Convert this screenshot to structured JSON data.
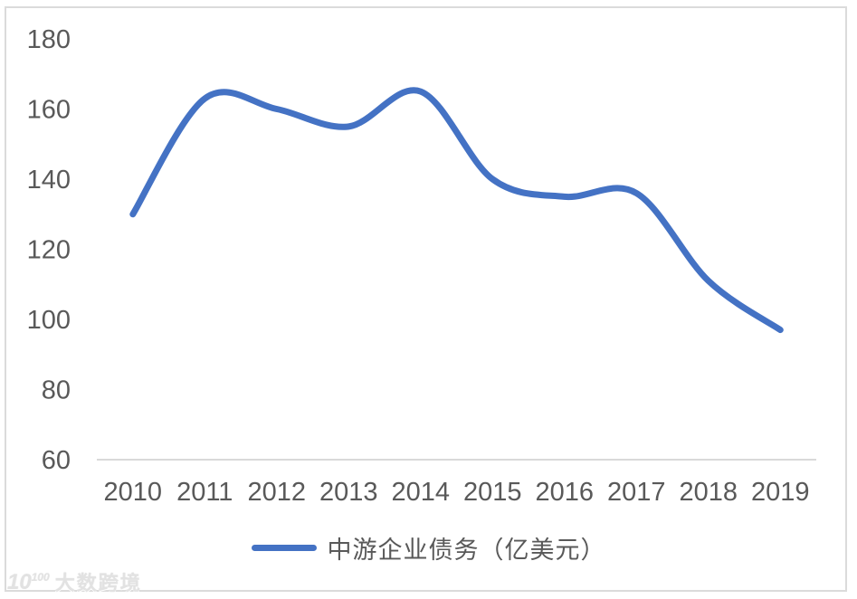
{
  "chart_data": {
    "type": "line",
    "title": "",
    "xlabel": "",
    "ylabel": "",
    "categories": [
      "2010",
      "2011",
      "2012",
      "2013",
      "2014",
      "2015",
      "2016",
      "2017",
      "2018",
      "2019"
    ],
    "series": [
      {
        "name": "中游企业债务（亿美元）",
        "values": [
          130,
          163,
          160,
          155,
          165,
          140,
          135,
          136,
          111,
          97
        ],
        "color": "#4472C4"
      }
    ],
    "ylim": [
      60,
      180
    ],
    "ytick_step": 20,
    "ytick_labels": [
      "180",
      "160",
      "140",
      "120",
      "100",
      "80",
      "60"
    ],
    "grid": false,
    "smooth": true,
    "legend_position": "bottom",
    "axis_label_color": "#595959",
    "axis_line_color": "#D9D9D9"
  },
  "legend": {
    "label": "中游企业债务（亿美元）"
  },
  "watermark": {
    "logo_base": "10",
    "logo_sup": "100",
    "text": "大数跨境"
  }
}
